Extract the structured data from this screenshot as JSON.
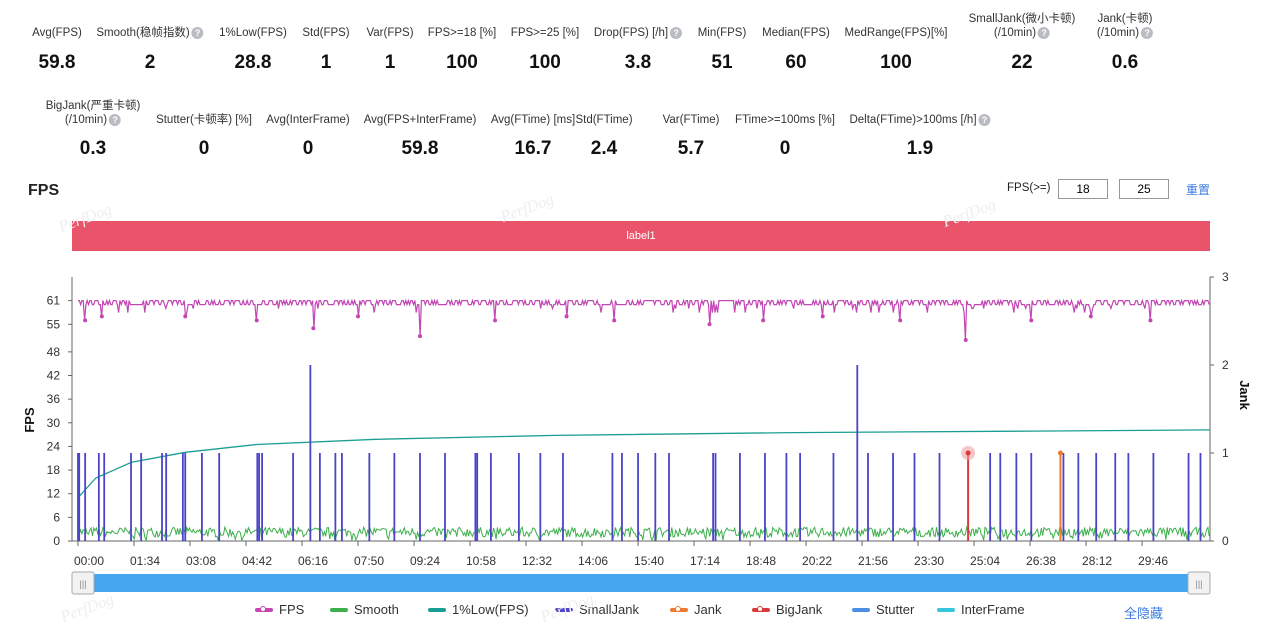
{
  "stats_row1": [
    {
      "label": "Avg(FPS)",
      "value": "59.8",
      "help": false
    },
    {
      "label": "Smooth(稳帧指数)",
      "value": "2",
      "help": true
    },
    {
      "label": "1%Low(FPS)",
      "value": "28.8",
      "help": false
    },
    {
      "label": "Std(FPS)",
      "value": "1",
      "help": false
    },
    {
      "label": "Var(FPS)",
      "value": "1",
      "help": false
    },
    {
      "label": "FPS>=18 [%]",
      "value": "100",
      "help": false
    },
    {
      "label": "FPS>=25 [%]",
      "value": "100",
      "help": false
    },
    {
      "label": "Drop(FPS) [/h]",
      "value": "3.8",
      "help": true
    },
    {
      "label": "Min(FPS)",
      "value": "51",
      "help": false
    },
    {
      "label": "Median(FPS)",
      "value": "60",
      "help": false
    },
    {
      "label": "MedRange(FPS)[%]",
      "value": "100",
      "help": false
    },
    {
      "label": "SmallJank(微小卡顿)",
      "label2": "(/10min)",
      "value": "22",
      "help": true
    },
    {
      "label": "Jank(卡顿)",
      "label2": "(/10min)",
      "value": "0.6",
      "help": true
    }
  ],
  "stats_row2": [
    {
      "label": "BigJank(严重卡顿)",
      "label2": "(/10min)",
      "value": "0.3",
      "help": true
    },
    {
      "label": "Stutter(卡顿率) [%]",
      "value": "0",
      "help": false
    },
    {
      "label": "Avg(InterFrame)",
      "value": "0",
      "help": false
    },
    {
      "label": "Avg(FPS+InterFrame)",
      "value": "59.8",
      "help": false
    },
    {
      "label": "Avg(FTime) [ms]",
      "value": "16.7",
      "help": false
    },
    {
      "label": "Std(FTime)",
      "value": "2.4",
      "help": false
    },
    {
      "label": "Var(FTime)",
      "value": "5.7",
      "help": false
    },
    {
      "label": "FTime>=100ms [%]",
      "value": "0",
      "help": false
    },
    {
      "label": "Delta(FTime)>100ms [/h]",
      "value": "1.9",
      "help": true
    }
  ],
  "chart_header": {
    "title": "FPS",
    "threshold_label": "FPS(>=)",
    "threshold1": "18",
    "threshold2": "25",
    "reset": "重置"
  },
  "label_bar": "label1",
  "watermark": "PerfDog",
  "hide_all": "全隐藏",
  "chart_data": {
    "type": "line",
    "ylabel_left": "FPS",
    "ylabel_right": "Jank",
    "y_left_ticks": [
      0,
      6,
      12,
      18,
      24,
      30,
      36,
      42,
      48,
      55,
      61
    ],
    "y_right_ticks": [
      0,
      1,
      2,
      3
    ],
    "x_ticks": [
      "00:00",
      "01:34",
      "03:08",
      "04:42",
      "06:16",
      "07:50",
      "09:24",
      "10:58",
      "12:32",
      "14:06",
      "15:40",
      "17:14",
      "18:48",
      "20:22",
      "21:56",
      "23:30",
      "25:04",
      "26:38",
      "28:12",
      "29:46"
    ],
    "x_tick_seconds": [
      0,
      94,
      188,
      282,
      376,
      470,
      564,
      658,
      752,
      846,
      940,
      1034,
      1128,
      1222,
      1316,
      1410,
      1504,
      1598,
      1692,
      1786
    ],
    "xlim_seconds": [
      0,
      1900
    ],
    "ylim_left": [
      0,
      67
    ],
    "ylim_right": [
      0,
      3
    ],
    "grid": false,
    "legend_position": "bottom",
    "series": [
      {
        "name": "FPS",
        "color": "#c246b4",
        "typical": [
          60,
          61
        ],
        "dips": [
          [
            12,
            56
          ],
          [
            40,
            57
          ],
          [
            180,
            57
          ],
          [
            300,
            56
          ],
          [
            395,
            54
          ],
          [
            470,
            57
          ],
          [
            574,
            52
          ],
          [
            700,
            56
          ],
          [
            820,
            57
          ],
          [
            900,
            56
          ],
          [
            1060,
            55
          ],
          [
            1150,
            56
          ],
          [
            1250,
            57
          ],
          [
            1380,
            56
          ],
          [
            1490,
            51
          ],
          [
            1600,
            56
          ],
          [
            1700,
            57
          ],
          [
            1800,
            56
          ]
        ]
      },
      {
        "name": "Smooth",
        "color": "#3cb04a",
        "typical": [
          1,
          3
        ]
      },
      {
        "name": "1%Low(FPS)",
        "color": "#1a9e94",
        "points": [
          [
            0,
            11
          ],
          [
            30,
            16
          ],
          [
            90,
            20
          ],
          [
            180,
            22.5
          ],
          [
            300,
            24.5
          ],
          [
            500,
            25.8
          ],
          [
            800,
            26.8
          ],
          [
            1200,
            27.5
          ],
          [
            1600,
            27.9
          ],
          [
            1900,
            28.2
          ]
        ]
      },
      {
        "name": "SmallJank",
        "color": "#4b44c8",
        "axis": "right",
        "spikes": [
          [
            0,
            1
          ],
          [
            2,
            1
          ],
          [
            12,
            1
          ],
          [
            35,
            1
          ],
          [
            44,
            1
          ],
          [
            89,
            1
          ],
          [
            106,
            1
          ],
          [
            141,
            1
          ],
          [
            148,
            1
          ],
          [
            176,
            1
          ],
          [
            180,
            1
          ],
          [
            208,
            1
          ],
          [
            237,
            1
          ],
          [
            301,
            1
          ],
          [
            304,
            1
          ],
          [
            309,
            1
          ],
          [
            361,
            1
          ],
          [
            390,
            2
          ],
          [
            406,
            1
          ],
          [
            432,
            1
          ],
          [
            443,
            1
          ],
          [
            489,
            1
          ],
          [
            531,
            1
          ],
          [
            574,
            1
          ],
          [
            616,
            1
          ],
          [
            667,
            1
          ],
          [
            670,
            1
          ],
          [
            693,
            1
          ],
          [
            740,
            1
          ],
          [
            776,
            1
          ],
          [
            814,
            1
          ],
          [
            897,
            1
          ],
          [
            913,
            1
          ],
          [
            940,
            1
          ],
          [
            969,
            1
          ],
          [
            992,
            1
          ],
          [
            1066,
            1
          ],
          [
            1070,
            1
          ],
          [
            1111,
            1
          ],
          [
            1153,
            1
          ],
          [
            1189,
            1
          ],
          [
            1212,
            1
          ],
          [
            1268,
            1
          ],
          [
            1308,
            2
          ],
          [
            1326,
            1
          ],
          [
            1368,
            1
          ],
          [
            1404,
            1
          ],
          [
            1446,
            1
          ],
          [
            1531,
            1
          ],
          [
            1548,
            1
          ],
          [
            1575,
            1
          ],
          [
            1600,
            1
          ],
          [
            1654,
            1
          ],
          [
            1679,
            1
          ],
          [
            1709,
            1
          ],
          [
            1741,
            1
          ],
          [
            1763,
            1
          ],
          [
            1805,
            1
          ],
          [
            1864,
            1
          ],
          [
            1884,
            1
          ]
        ]
      },
      {
        "name": "Jank",
        "color": "#ee7a31",
        "axis": "right",
        "spikes": [
          [
            1649,
            1
          ]
        ]
      },
      {
        "name": "BigJank",
        "color": "#d93a3a",
        "axis": "right",
        "spikes": [
          [
            1494,
            1
          ]
        ]
      },
      {
        "name": "Stutter",
        "color": "#4a8fe2"
      },
      {
        "name": "InterFrame",
        "color": "#35c6dc"
      }
    ]
  }
}
